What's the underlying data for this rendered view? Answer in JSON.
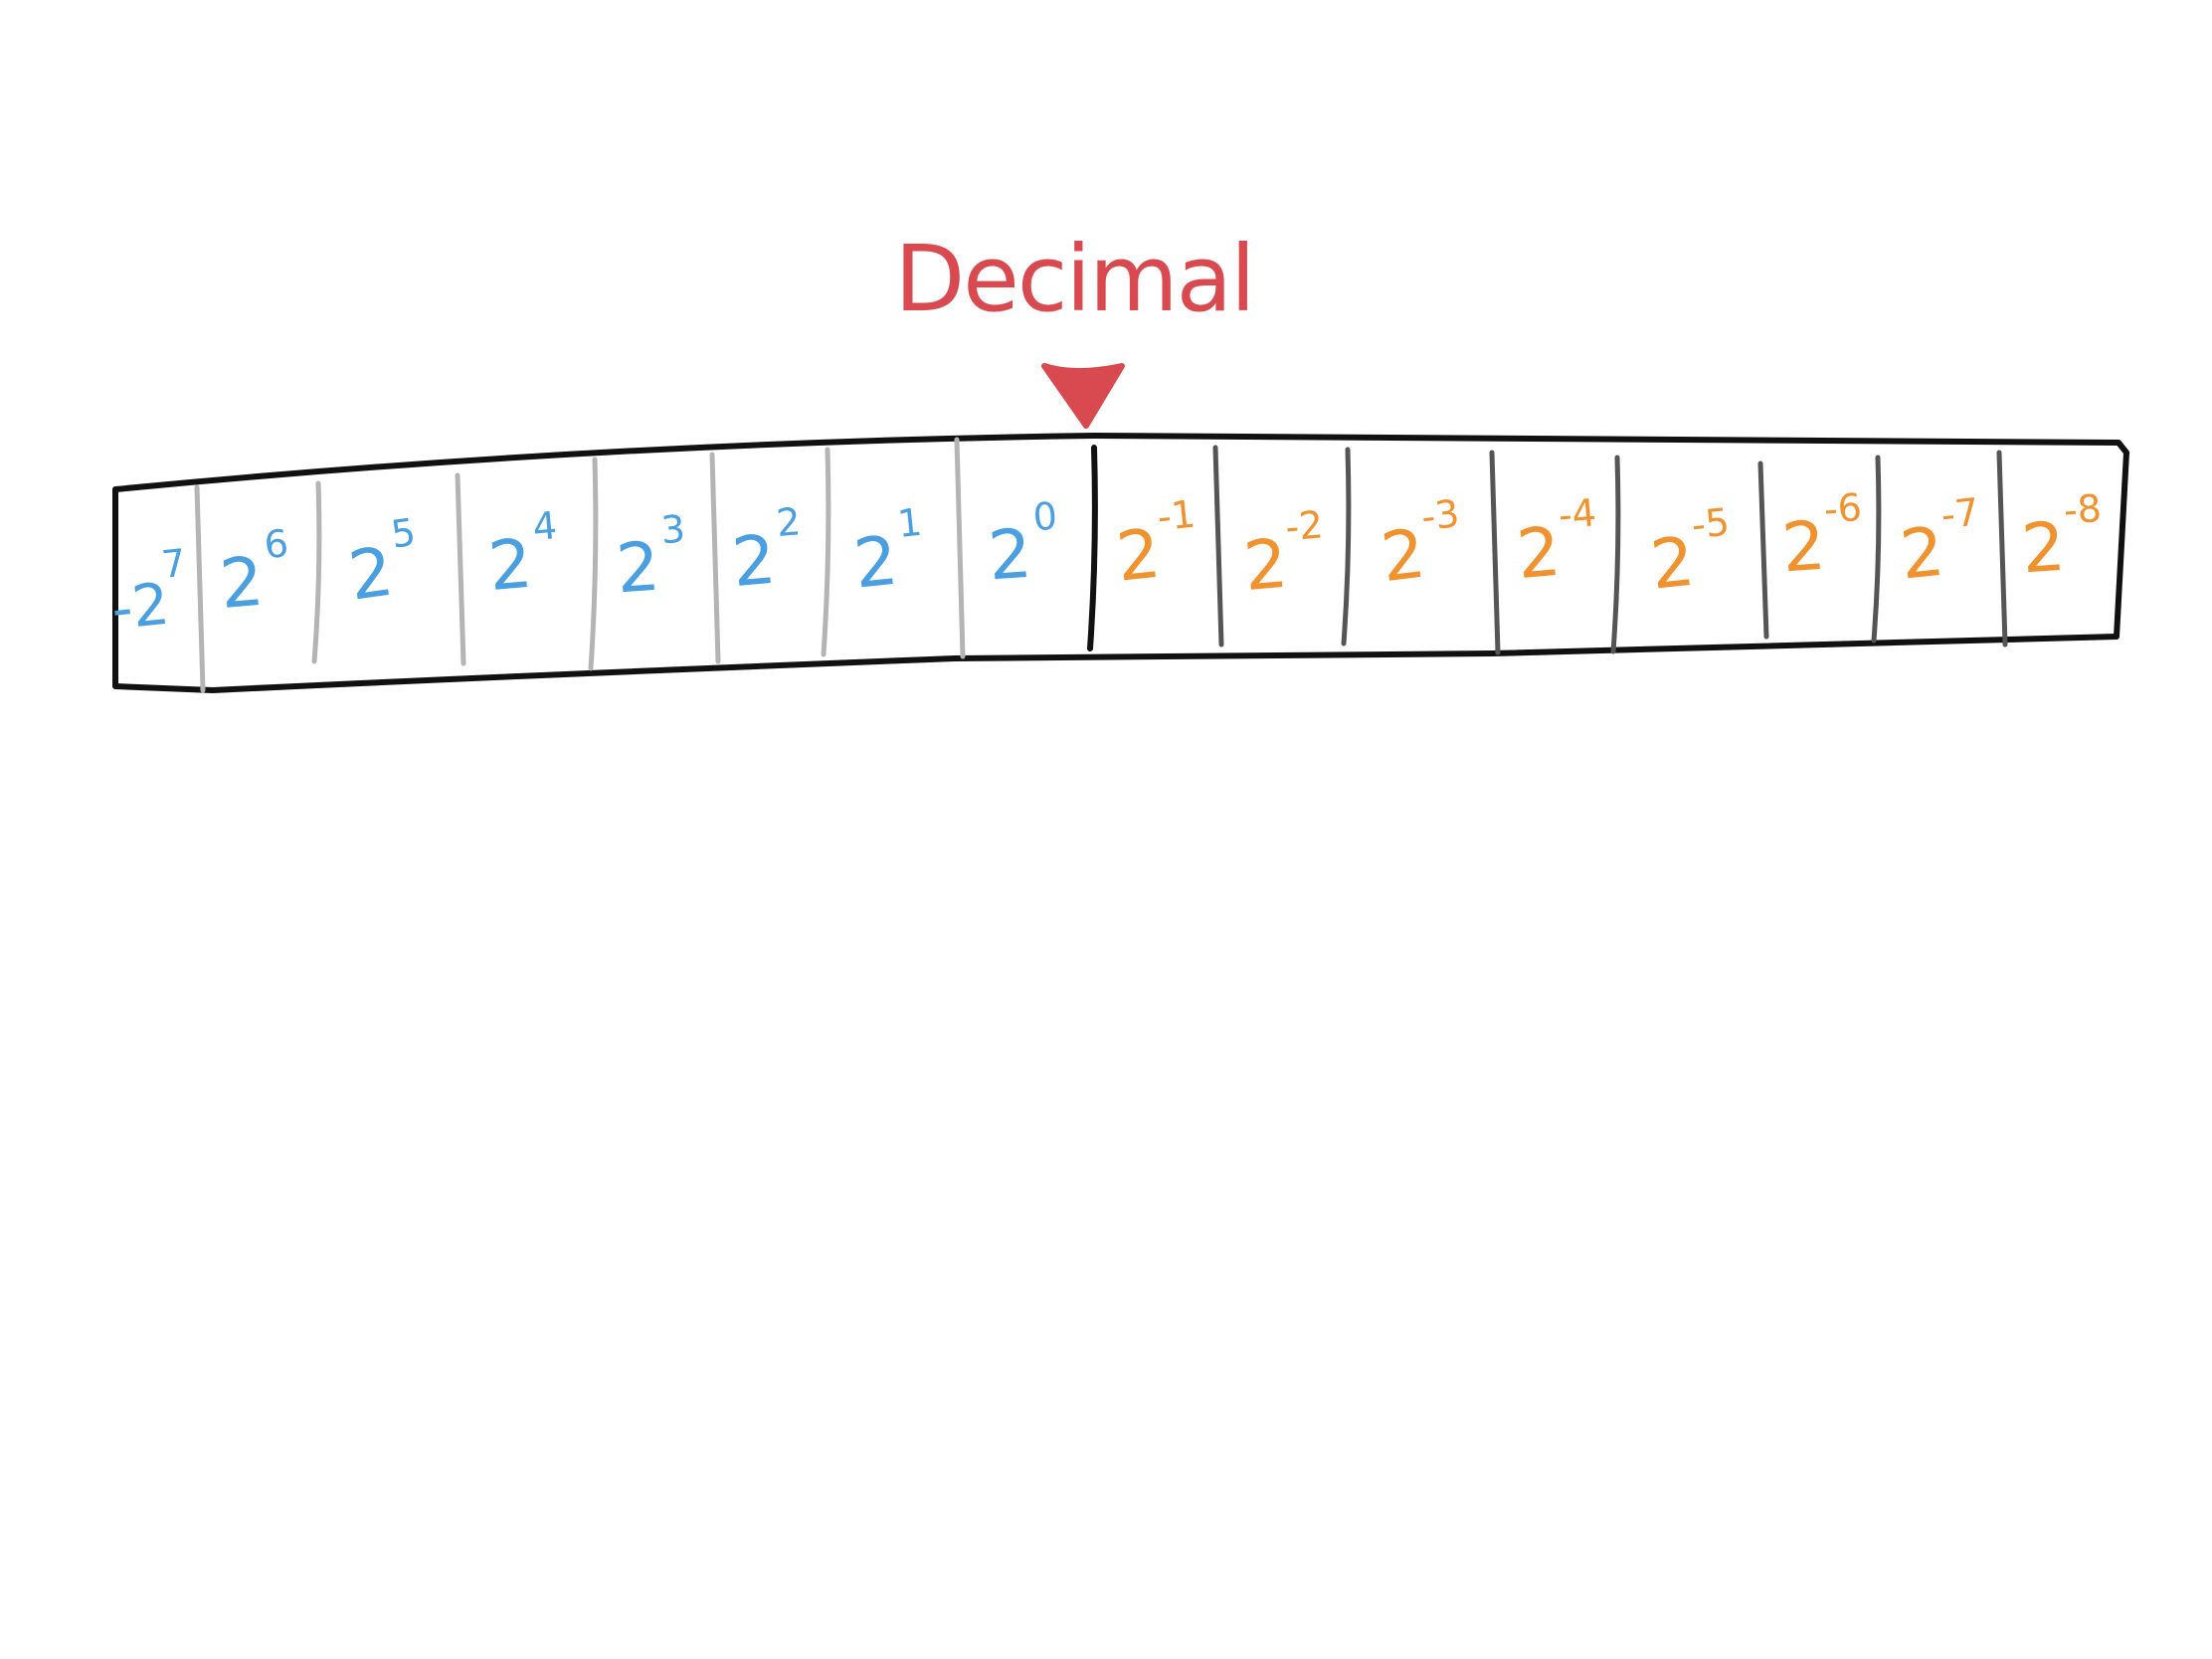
{
  "label": {
    "text": "Decimal",
    "color": "#d84a4f"
  },
  "colors": {
    "integer_text": "#4a9fe0",
    "fraction_text": "#f0922e",
    "integer_divider": "#b4b4b4",
    "fraction_divider": "#555555",
    "decimal_divider": "#111111",
    "outline": "#111111"
  },
  "cells": [
    {
      "prefix": "-",
      "base": "2",
      "exponent": "7",
      "part": "integer"
    },
    {
      "prefix": "",
      "base": "2",
      "exponent": "6",
      "part": "integer"
    },
    {
      "prefix": "",
      "base": "2",
      "exponent": "5",
      "part": "integer"
    },
    {
      "prefix": "",
      "base": "2",
      "exponent": "4",
      "part": "integer"
    },
    {
      "prefix": "",
      "base": "2",
      "exponent": "3",
      "part": "integer"
    },
    {
      "prefix": "",
      "base": "2",
      "exponent": "2",
      "part": "integer"
    },
    {
      "prefix": "",
      "base": "2",
      "exponent": "1",
      "part": "integer"
    },
    {
      "prefix": "",
      "base": "2",
      "exponent": "0",
      "part": "integer"
    },
    {
      "prefix": "",
      "base": "2",
      "exponent": "-1",
      "part": "fraction"
    },
    {
      "prefix": "",
      "base": "2",
      "exponent": "-2",
      "part": "fraction"
    },
    {
      "prefix": "",
      "base": "2",
      "exponent": "-3",
      "part": "fraction"
    },
    {
      "prefix": "",
      "base": "2",
      "exponent": "-4",
      "part": "fraction"
    },
    {
      "prefix": "",
      "base": "2",
      "exponent": "-5",
      "part": "fraction"
    },
    {
      "prefix": "",
      "base": "2",
      "exponent": "-6",
      "part": "fraction"
    },
    {
      "prefix": "",
      "base": "2",
      "exponent": "-7",
      "part": "fraction"
    },
    {
      "prefix": "",
      "base": "2",
      "exponent": "-8",
      "part": "fraction"
    }
  ]
}
